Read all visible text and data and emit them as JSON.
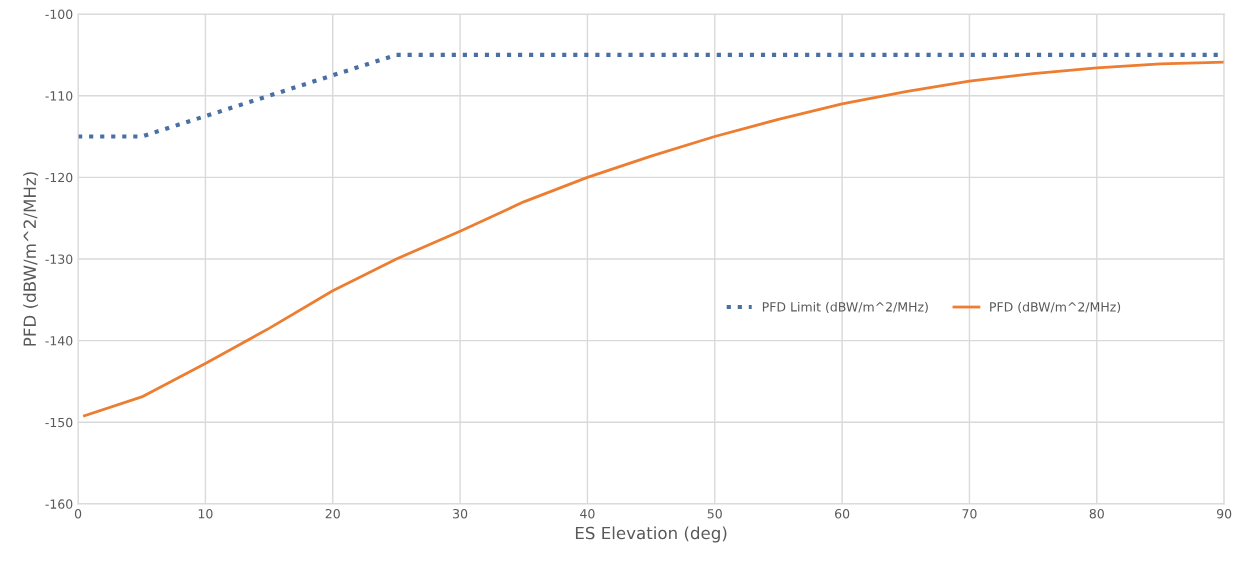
{
  "chart_data": {
    "type": "line",
    "xlabel": "ES Elevation (deg)",
    "ylabel": "PFD (dBW/m^2/MHz)",
    "xlim": [
      0,
      90
    ],
    "xticks": [
      0,
      10,
      20,
      30,
      40,
      50,
      60,
      70,
      80,
      90
    ],
    "ylim": [
      -160,
      -100
    ],
    "yticks": [
      -160,
      -150,
      -140,
      -130,
      -120,
      -110,
      -100
    ],
    "grid": true,
    "legend": "right",
    "marker": "none",
    "series": [
      {
        "name": "PFD Limit (dBW/m^2/MHz)",
        "color": "#4a6fa5",
        "line_style": "dotted",
        "x": [
          0,
          5,
          25,
          90
        ],
        "values": [
          -115,
          -115,
          -105,
          -105
        ]
      },
      {
        "name": "PFD (dBW/m^2/MHz)",
        "color": "#ed7d31",
        "line_style": "solid",
        "x": [
          0.5,
          5,
          10,
          15,
          20,
          25,
          30,
          35,
          40,
          45,
          50,
          55,
          60,
          65,
          70,
          75,
          80,
          85,
          90
        ],
        "values": [
          -149.2,
          -146.9,
          -142.8,
          -138.5,
          -133.9,
          -130,
          -126.6,
          -123,
          -120,
          -117.4,
          -115,
          -112.9,
          -111,
          -109.5,
          -108.2,
          -107.3,
          -106.6,
          -106.1,
          -105.9
        ]
      }
    ]
  }
}
